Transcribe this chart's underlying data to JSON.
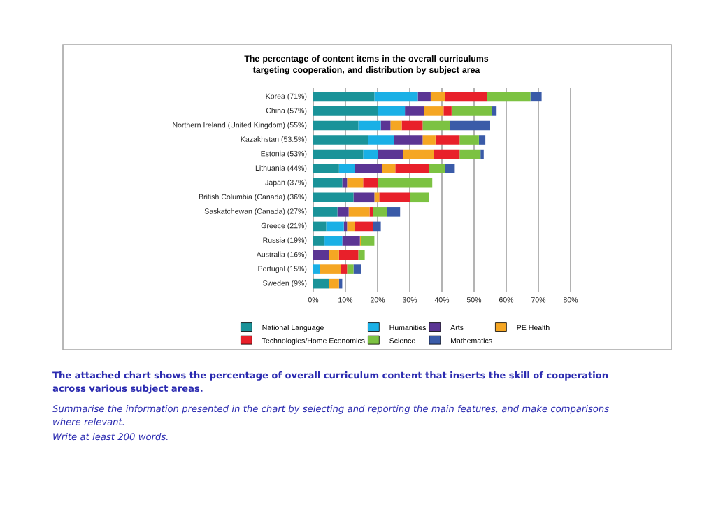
{
  "chart_data": {
    "type": "bar",
    "orientation": "horizontal",
    "stacked": true,
    "title": "The percentage of content items in the overall curriculums targeting cooperation, and distribution by subject area",
    "categories": [
      "Korea (71%)",
      "China (57%)",
      "Northern Ireland (United Kingdom) (55%)",
      "Kazakhstan (53.5%)",
      "Estonia (53%)",
      "Lithuania (44%)",
      "Japan (37%)",
      "British Columbia (Canada) (36%)",
      "Saskatchewan (Canada) (27%)",
      "Greece (21%)",
      "Russia (19%)",
      "Australia (16%)",
      "Portugal (15%)",
      "Sweden (9%)"
    ],
    "series": [
      {
        "name": "National Language",
        "color": "#1a9399",
        "values": [
          19,
          20,
          14,
          17,
          15.5,
          8,
          9,
          12.5,
          7.5,
          4,
          3.5,
          0,
          0,
          5
        ]
      },
      {
        "name": "Humanities",
        "color": "#1ab0e6",
        "values": [
          13.5,
          8.5,
          7,
          8,
          4.5,
          5,
          0,
          0,
          0,
          5.5,
          5.5,
          0,
          2,
          0
        ]
      },
      {
        "name": "Arts",
        "color": "#5b3594",
        "values": [
          4,
          6,
          3,
          9,
          8,
          8.5,
          1.5,
          6.5,
          3.5,
          1,
          5.5,
          5,
          0,
          0
        ]
      },
      {
        "name": "PE Health",
        "color": "#f5a623",
        "values": [
          4.5,
          6,
          3.5,
          4,
          9.5,
          4,
          5,
          1.5,
          6.5,
          2.5,
          0.5,
          3,
          6.5,
          3
        ]
      },
      {
        "name": "Technologies/Home Economics",
        "color": "#e8202a",
        "values": [
          13,
          2.5,
          6.5,
          7.5,
          8,
          10.5,
          4.5,
          9.5,
          1,
          5.5,
          0,
          6,
          2,
          0
        ]
      },
      {
        "name": "Science",
        "color": "#7cc242",
        "values": [
          13.5,
          12.5,
          8.5,
          6,
          6.5,
          5,
          17,
          6,
          4.5,
          0,
          4,
          2,
          2,
          0
        ]
      },
      {
        "name": "Mathematics",
        "color": "#3a5ba8",
        "values": [
          3.5,
          1.5,
          12.5,
          2,
          1,
          3,
          0,
          0,
          4,
          2.5,
          0,
          0,
          2.5,
          1
        ]
      }
    ],
    "xlim": [
      0,
      80
    ],
    "xticks": [
      {
        "value": 0,
        "label": "0%"
      },
      {
        "value": 10,
        "label": "10%"
      },
      {
        "value": 20,
        "label": "20%"
      },
      {
        "value": 30,
        "label": "30%"
      },
      {
        "value": 40,
        "label": "40%"
      },
      {
        "value": 50,
        "label": "50%"
      },
      {
        "value": 60,
        "label": "60%"
      },
      {
        "value": 70,
        "label": "70%"
      },
      {
        "value": 80,
        "label": "80%"
      }
    ],
    "grid": "x",
    "legend": "bottom",
    "annotations": [
      "The attached chart shows the percentage of overall curriculum content that inserts the skill of cooperation across various subject areas.",
      "Summarise the information presented in the chart by selecting and reporting the main features, and make comparisons where relevant.",
      "Write at least 200 words."
    ]
  }
}
